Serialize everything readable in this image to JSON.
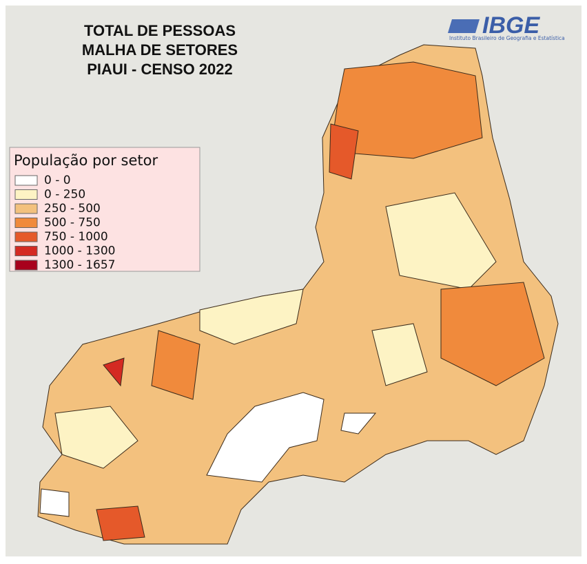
{
  "title": [
    "TOTAL DE PESSOAS",
    "MALHA DE SETORES",
    "PIAUI - CENSO 2022"
  ],
  "logo": {
    "name": "IBGE",
    "subtitle": "Instituto Brasileiro de Geografia e Estatística"
  },
  "legend": {
    "title": "População por setor",
    "items": [
      {
        "label": "0 - 0",
        "color": "#ffffff"
      },
      {
        "label": "0 - 250",
        "color": "#fdf3c4"
      },
      {
        "label": "250 - 500",
        "color": "#f3c17e"
      },
      {
        "label": "500 - 750",
        "color": "#f08a3c"
      },
      {
        "label": "750 - 1000",
        "color": "#e5592a"
      },
      {
        "label": "1000 - 1300",
        "color": "#d42a22"
      },
      {
        "label": "1300 - 1657",
        "color": "#a8001c"
      }
    ]
  }
}
